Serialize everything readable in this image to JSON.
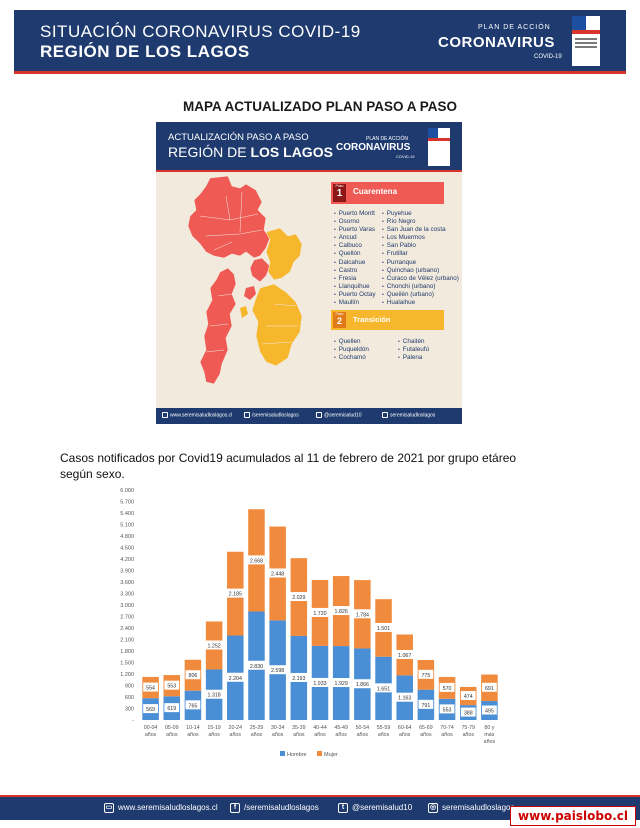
{
  "header": {
    "title_line1": "SITUACIÓN CORONAVIRUS COVID-19",
    "title_line2": "REGIÓN DE LOS LAGOS",
    "logo_plan": "PLAN DE ACCIÓN",
    "logo_main": "CORONAVIRUS",
    "logo_sub": "COVID-19",
    "seal_icon": "gobierno-de-chile-seal-icon"
  },
  "map_section": {
    "title": "MAPA ACTUALIZADO PLAN PASO A PASO",
    "infographic": {
      "header_line1": "ACTUALIZACIÓN PASO A PASO",
      "header_line2_a": "REGIÓN DE ",
      "header_line2_b": "LOS LAGOS",
      "logo_plan": "PLAN DE ACCIÓN",
      "logo_main": "CORONAVIRUS",
      "logo_sub": "COVID-19",
      "phase1": {
        "paso_label": "Paso",
        "number": "1",
        "label": "Cuarentena",
        "color": "#ef5a55",
        "communes_col1": [
          "Puerto Montt",
          "Osorno",
          "Puerto Varas",
          "Ancud",
          "Calbuco",
          "Quellón",
          "Dalcahue",
          "Castro",
          "Fresia",
          "Llanquihue",
          "Puerto Octay",
          "Maullín"
        ],
        "communes_col2": [
          "Puyehue",
          "Río Negro",
          "San Juan de la costa",
          "Los Muermos",
          "San Pablo",
          "Frutillar",
          "Purranque",
          "Quinchao (urbano)",
          "Curaco de Vélez (urbano)",
          "Chonchi (urbano)",
          "Queilén (urbano)",
          "Hualaihue"
        ]
      },
      "phase2": {
        "paso_label": "Paso",
        "number": "2",
        "label": "Transición",
        "color": "#f7b72d",
        "communes_col1": [
          "Quellen",
          "Puqueldón",
          "Cochamó"
        ],
        "communes_col2": [
          "Chaitén",
          "Futaleufú",
          "Palena"
        ]
      },
      "footer": [
        "www.seremisaludloslagos.cl",
        "/seremisaludloslagos",
        "@seremisalud10",
        "seremisaludloslagos"
      ]
    }
  },
  "chart_caption": "Casos notificados por Covid19 acumulados al 11 de febrero de 2021 por grupo etáreo según sexo.",
  "chart_data": {
    "type": "bar",
    "stacked": true,
    "categories": [
      "00-04 años",
      "05-09 años",
      "10-14 años",
      "15-19 años",
      "20-24 años",
      "25-29 años",
      "30-34 años",
      "35-39 años",
      "40-44 años",
      "45-49 años",
      "50-54 años",
      "55-59 años",
      "60-64 años",
      "65-69 años",
      "70-74 años",
      "75-79 años",
      "80 y más años"
    ],
    "series": [
      {
        "name": "Hombre",
        "color": "#4a8fd6",
        "values": [
          569,
          619,
          765,
          1318,
          2204,
          2830,
          2598,
          2193,
          1933,
          1929,
          1866,
          1651,
          1163,
          791,
          553,
          388,
          495
        ]
      },
      {
        "name": "Mujer",
        "color": "#f08a3c",
        "values": [
          554,
          553,
          806,
          1252,
          2185,
          2668,
          2448,
          2029,
          1720,
          1826,
          1784,
          1501,
          1067,
          775,
          570,
          474,
          691
        ]
      }
    ],
    "ylim": [
      0,
      6000
    ],
    "yticks": [
      "-",
      "300",
      "600",
      "900",
      "1.200",
      "1.500",
      "1.800",
      "2.100",
      "2.400",
      "2.700",
      "3.000",
      "3.300",
      "3.600",
      "3.900",
      "4.200",
      "4.500",
      "4.800",
      "5.100",
      "5.400",
      "5.700",
      "6.000"
    ],
    "value_labels_hombre": [
      "569",
      "619",
      "765",
      "1.318",
      "2.204",
      "2.830",
      "2.598",
      "2.193",
      "1.933",
      "1.929",
      "1.866",
      "1.651",
      "1.163",
      "791",
      "553",
      "388",
      "495"
    ],
    "value_labels_mujer": [
      "554",
      "553",
      "806",
      "1.252",
      "2.185",
      "2.668",
      "2.448",
      "2.029",
      "1.720",
      "1.826",
      "1.784",
      "1.501",
      "1.067",
      "775",
      "570",
      "474",
      "691"
    ],
    "legend": "bottom"
  },
  "footer": {
    "web": "www.seremisaludloslagos.cl",
    "facebook": "/seremisaludloslagos",
    "twitter": "@seremisalud10",
    "instagram": "seremisaludloslagos",
    "icons": [
      "web-icon",
      "facebook-icon",
      "twitter-icon",
      "instagram-icon"
    ]
  },
  "watermark": "www.paislobo.cl"
}
